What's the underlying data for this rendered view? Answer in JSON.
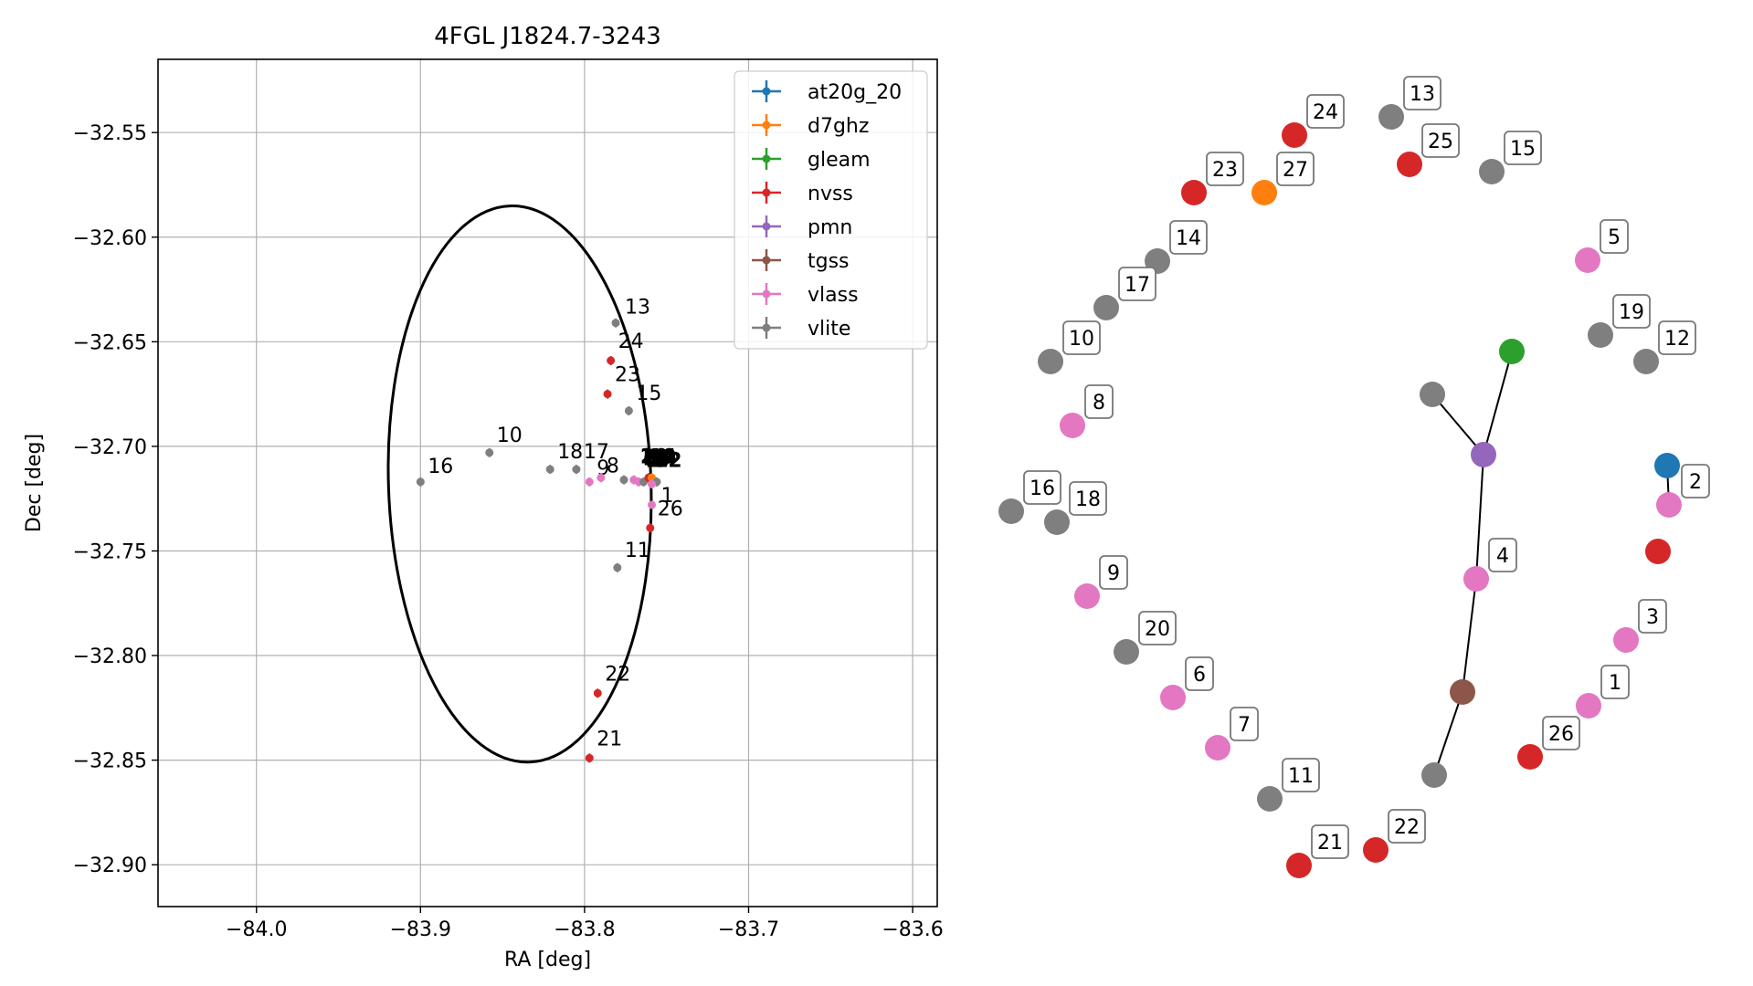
{
  "chart_data": [
    {
      "type": "scatter",
      "title": "4FGL J1824.7-3243",
      "xlabel": "RA [deg]",
      "ylabel": "Dec [deg]",
      "xlim": [
        -84.06,
        -83.585
      ],
      "ylim": [
        -32.92,
        -32.515
      ],
      "xticks": [
        -84.0,
        -83.9,
        -83.8,
        -83.7,
        -83.6
      ],
      "xtick_labels": [
        "−84.0",
        "−83.9",
        "−83.8",
        "−83.7",
        "−83.6"
      ],
      "yticks": [
        -32.55,
        -32.6,
        -32.65,
        -32.7,
        -32.75,
        -32.8,
        -32.85,
        -32.9
      ],
      "ytick_labels": [
        "−32.55",
        "−32.60",
        "−32.65",
        "−32.70",
        "−32.75",
        "−32.80",
        "−32.85",
        "−32.90"
      ],
      "grid": true,
      "legend_position": "top-right",
      "ellipse": {
        "center_ra": -83.8395,
        "center_dec": -32.718,
        "semi_ra": 0.08,
        "semi_dec": 0.133,
        "color": "#000000"
      },
      "series": [
        {
          "name": "at20g_20",
          "color": "#1f77b4"
        },
        {
          "name": "d7ghz",
          "color": "#ff7f0e"
        },
        {
          "name": "gleam",
          "color": "#2ca02c"
        },
        {
          "name": "nvss",
          "color": "#d62728"
        },
        {
          "name": "pmn",
          "color": "#9467bd"
        },
        {
          "name": "tgss",
          "color": "#8c564b"
        },
        {
          "name": "vlass",
          "color": "#e377c2"
        },
        {
          "name": "vlite",
          "color": "#7f7f7f"
        }
      ],
      "points": [
        {
          "label": "13",
          "ra": -83.781,
          "dec": -32.641,
          "series": "vlite"
        },
        {
          "label": "24",
          "ra": -83.784,
          "dec": -32.659,
          "series": "nvss"
        },
        {
          "label": "23",
          "ra": -83.786,
          "dec": -32.675,
          "series": "nvss"
        },
        {
          "label": "15",
          "ra": -83.773,
          "dec": -32.683,
          "series": "vlite"
        },
        {
          "label": "10",
          "ra": -83.858,
          "dec": -32.703,
          "series": "vlite"
        },
        {
          "label": "16",
          "ra": -83.9,
          "dec": -32.717,
          "series": "vlite"
        },
        {
          "label": "18",
          "ra": -83.821,
          "dec": -32.711,
          "series": "vlite"
        },
        {
          "label": "17",
          "ra": -83.805,
          "dec": -32.711,
          "series": "vlite"
        },
        {
          "label": "9",
          "ra": -83.797,
          "dec": -32.717,
          "series": "vlass"
        },
        {
          "label": "8",
          "ra": -83.79,
          "dec": -32.715,
          "series": "vlass"
        },
        {
          "label": "20",
          "ra": -83.776,
          "dec": -32.716,
          "series": "vlite"
        },
        {
          "label": "6",
          "ra": -83.77,
          "dec": -32.716,
          "series": "vlass"
        },
        {
          "label": "7",
          "ra": -83.767,
          "dec": -32.717,
          "series": "vlass"
        },
        {
          "label": "14",
          "ra": -83.764,
          "dec": -32.717,
          "series": "vlite"
        },
        {
          "label": "25",
          "ra": -83.761,
          "dec": -32.715,
          "series": "nvss"
        },
        {
          "label": "27",
          "ra": -83.759,
          "dec": -32.715,
          "series": "d7ghz"
        },
        {
          "label": "12",
          "ra": -83.756,
          "dec": -32.717,
          "series": "vlite"
        },
        {
          "label": "1",
          "ra": -83.759,
          "dec": -32.718,
          "series": "vlass"
        },
        {
          "label": "26",
          "ra": -83.76,
          "dec": -32.739,
          "series": "nvss"
        },
        {
          "label": "11",
          "ra": -83.78,
          "dec": -32.758,
          "series": "vlite"
        },
        {
          "label": "22",
          "ra": -83.792,
          "dec": -32.818,
          "series": "nvss"
        },
        {
          "label": "21",
          "ra": -83.797,
          "dec": -32.849,
          "series": "nvss"
        }
      ],
      "cluster_labels": [
        "20",
        "6",
        "7",
        "14",
        "5",
        "12",
        "2",
        "25",
        "27",
        "19",
        "4",
        "3"
      ],
      "extra_point": {
        "label": "2",
        "ra": -83.759,
        "dec": -32.728,
        "series": "vlass"
      }
    },
    {
      "type": "network",
      "nodes": [
        {
          "label": "13",
          "color": "#7f7f7f"
        },
        {
          "label": "24",
          "color": "#d62728"
        },
        {
          "label": "25",
          "color": "#d62728"
        },
        {
          "label": "15",
          "color": "#7f7f7f"
        },
        {
          "label": "23",
          "color": "#d62728"
        },
        {
          "label": "27",
          "color": "#ff7f0e"
        },
        {
          "label": "14",
          "color": "#7f7f7f"
        },
        {
          "label": "5",
          "color": "#e377c2"
        },
        {
          "label": "17",
          "color": "#7f7f7f"
        },
        {
          "label": "10",
          "color": "#7f7f7f"
        },
        {
          "label": "19",
          "color": "#7f7f7f"
        },
        {
          "label": "12",
          "color": "#7f7f7f"
        },
        {
          "label": "8",
          "color": "#e377c2"
        },
        {
          "label": "16",
          "color": "#7f7f7f"
        },
        {
          "label": "18",
          "color": "#7f7f7f"
        },
        {
          "label": "2",
          "color": "#e377c2"
        },
        {
          "label": "4",
          "color": "#e377c2"
        },
        {
          "label": "9",
          "color": "#e377c2"
        },
        {
          "label": "3",
          "color": "#e377c2"
        },
        {
          "label": "20",
          "color": "#7f7f7f"
        },
        {
          "label": "6",
          "color": "#e377c2"
        },
        {
          "label": "1",
          "color": "#e377c2"
        },
        {
          "label": "7",
          "color": "#e377c2"
        },
        {
          "label": "26",
          "color": "#d62728"
        },
        {
          "label": "11",
          "color": "#7f7f7f"
        },
        {
          "label": "21",
          "color": "#d62728"
        },
        {
          "label": "22",
          "color": "#d62728"
        },
        {
          "label": "",
          "color": "#2ca02c"
        },
        {
          "label": "",
          "color": "#7f7f7f"
        },
        {
          "label": "",
          "color": "#9467bd"
        },
        {
          "label": "",
          "color": "#8c564b"
        },
        {
          "label": "",
          "color": "#7f7f7f"
        },
        {
          "label": "",
          "color": "#1f77b4"
        },
        {
          "label": "",
          "color": "#d62728"
        }
      ]
    }
  ]
}
